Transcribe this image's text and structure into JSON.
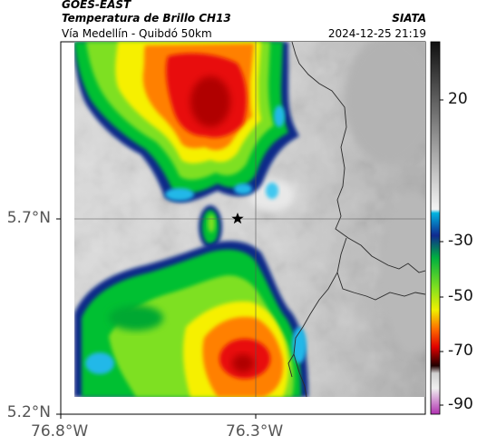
{
  "header": {
    "satellite": "GOES-EAST",
    "product": "Temperatura de Brillo CH13",
    "region": "Vía Medellín - Quibdó 50km",
    "agency": "SIATA",
    "datetime": "2024-12-25 21:19"
  },
  "map": {
    "lat_ticks": [
      "5.7°N",
      "5.2°N"
    ],
    "lon_ticks": [
      "76.8°W",
      "76.3°W"
    ],
    "marker": "star",
    "crosshair": {
      "lat": 5.7,
      "lon": -76.3
    }
  },
  "colorbar": {
    "ticks": [
      "20",
      "-30",
      "-50",
      "-70",
      "-90"
    ],
    "unit_stops": [
      {
        "value": 36,
        "color": "#111111"
      },
      {
        "value": -18,
        "color": "#f2f2f2"
      },
      {
        "value": -20,
        "color": "#00b4e0"
      },
      {
        "value": -28,
        "color": "#1030a0"
      },
      {
        "value": -35,
        "color": "#00c040"
      },
      {
        "value": -45,
        "color": "#90e020"
      },
      {
        "value": -52,
        "color": "#f0f000"
      },
      {
        "value": -60,
        "color": "#ff7000"
      },
      {
        "value": -66,
        "color": "#e00000"
      },
      {
        "value": -72,
        "color": "#300000"
      },
      {
        "value": -80,
        "color": "#e8e8e8"
      },
      {
        "value": -92,
        "color": "#c040c0"
      }
    ]
  }
}
